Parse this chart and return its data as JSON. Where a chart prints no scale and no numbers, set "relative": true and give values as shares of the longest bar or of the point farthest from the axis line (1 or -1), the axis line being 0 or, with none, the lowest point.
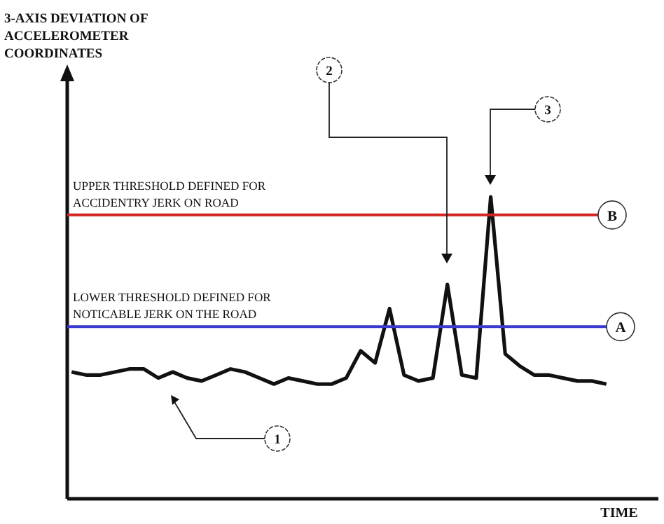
{
  "chart_data": {
    "type": "line",
    "relative": true,
    "xlabel": "TIME",
    "categories": [
      null,
      null,
      null,
      null,
      null,
      null,
      null,
      null,
      null,
      null,
      null,
      null,
      null,
      null,
      null,
      null,
      null,
      null,
      null,
      null,
      null,
      null,
      null,
      null,
      null,
      null,
      null,
      null,
      null,
      null,
      null,
      null,
      null,
      null,
      null,
      null,
      null,
      null
    ],
    "series": [
      {
        "color": "#111111",
        "values": [
          0.42,
          0.41,
          0.41,
          0.42,
          0.43,
          0.43,
          0.4,
          0.42,
          0.4,
          0.39,
          0.41,
          0.43,
          0.42,
          0.4,
          0.38,
          0.4,
          0.39,
          0.38,
          0.38,
          0.4,
          0.49,
          0.45,
          0.63,
          0.41,
          0.39,
          0.4,
          0.71,
          0.41,
          0.4,
          1,
          0.48,
          0.44,
          0.41,
          0.41,
          0.4,
          0.39,
          0.39,
          0.38
        ]
      }
    ],
    "ref_lines": [
      {
        "axis": "y",
        "value": 0.94,
        "label": "B",
        "color": "#d42424"
      },
      {
        "axis": "y",
        "value": 0.57,
        "label": "A",
        "color": "#3a3ad0"
      }
    ],
    "annotations": [
      "UPPER THRESHOLD DEFINED FOR ACCIDENTRY JERK ON ROAD",
      "LOWER THRESHOLD DEFINED FOR NOTICABLE JERK ON THE ROAD",
      "1",
      "2",
      "3",
      "3-AXIS DEVIATION OF ACCELEROMETER COORDINATES"
    ],
    "marker": "none",
    "line_style": "solid"
  }
}
